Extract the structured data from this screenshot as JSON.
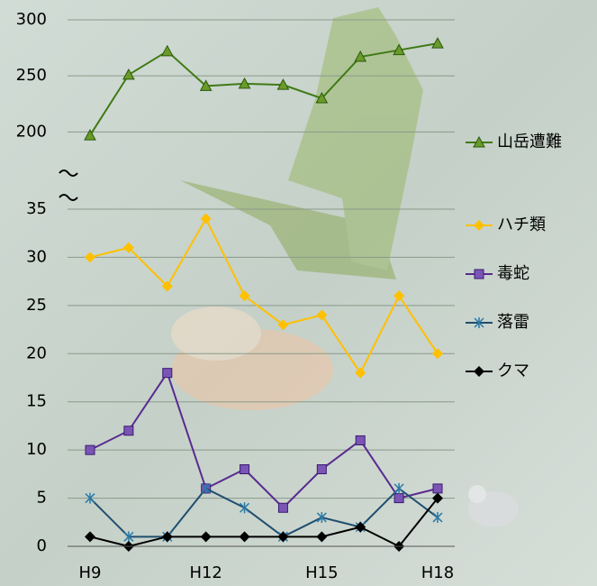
{
  "chart_data": [
    {
      "type": "line",
      "ylim": [
        185,
        300
      ],
      "yticks": [
        200,
        250,
        300
      ],
      "grid": true,
      "series": [
        {
          "name": "山岳遭難",
          "color": "#3f7a14",
          "marker_color": "#6a9a2a",
          "marker": "triangle",
          "values": [
            197,
            251,
            272,
            241,
            243,
            242,
            230,
            267,
            273,
            279
          ]
        }
      ]
    },
    {
      "type": "line",
      "categories": [
        "H9",
        null,
        null,
        "H12",
        null,
        null,
        "H15",
        null,
        null,
        "H18"
      ],
      "ylim": [
        0,
        35
      ],
      "yticks": [
        0,
        5,
        10,
        15,
        20,
        25,
        30,
        35
      ],
      "grid": true,
      "series": [
        {
          "name": "ハチ類",
          "color": "#ffc000",
          "marker_color": "#ffc000",
          "marker": "diamond",
          "values": [
            30,
            31,
            27,
            34,
            26,
            23,
            24,
            18,
            26,
            20
          ]
        },
        {
          "name": "毒蛇",
          "color": "#5a2a90",
          "marker_color": "#7a55b5",
          "marker": "square",
          "values": [
            10,
            12,
            18,
            6,
            8,
            4,
            8,
            11,
            5,
            6
          ]
        },
        {
          "name": "落雷",
          "color": "#1f4e6e",
          "marker_color": "#2a7aa8",
          "marker": "star",
          "values": [
            5,
            1,
            1,
            6,
            4,
            1,
            3,
            2,
            6,
            3
          ]
        },
        {
          "name": "クマ",
          "color": "#000000",
          "marker_color": "#000000",
          "marker": "diamond",
          "values": [
            1,
            0,
            1,
            1,
            1,
            1,
            1,
            2,
            0,
            5
          ]
        }
      ]
    }
  ]
}
